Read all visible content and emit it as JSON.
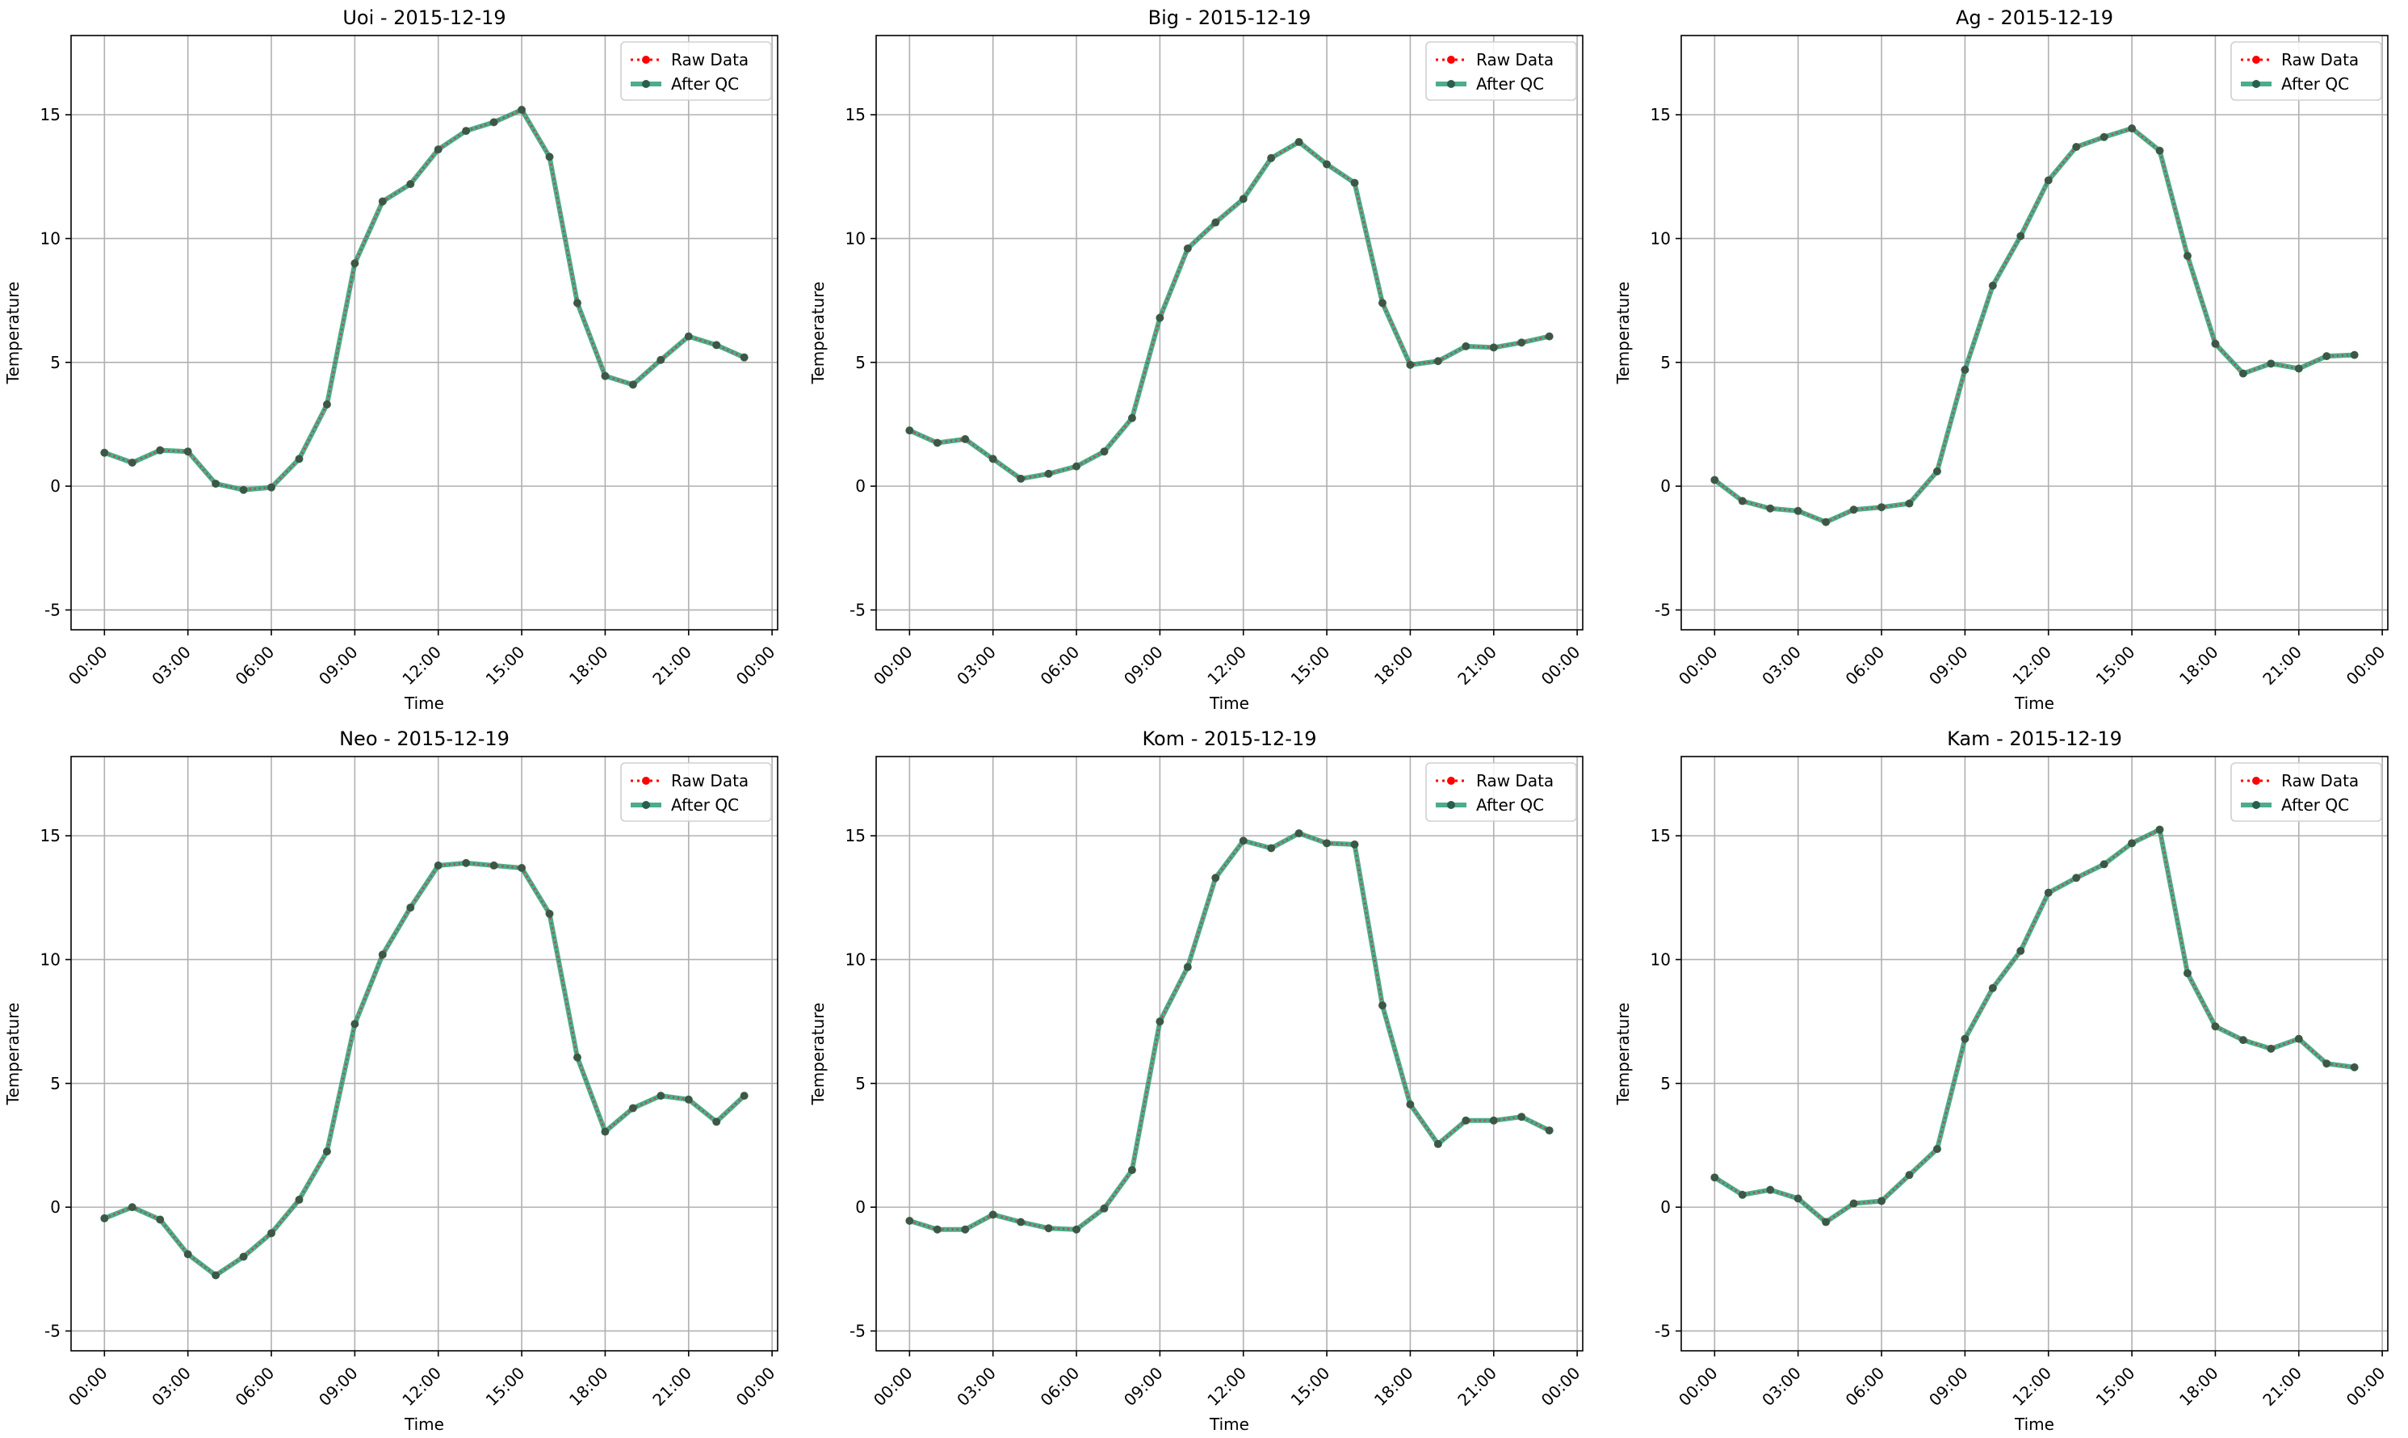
{
  "figure": {
    "xlabel": "Time",
    "ylabel": "Temperature",
    "legend": {
      "position": "top-right",
      "raw_label": "Raw Data",
      "qc_label": "After QC"
    },
    "colors": {
      "raw": "#ff0000",
      "qc": "#2e9e78",
      "grid": "#b0b0b0",
      "marker_dark": "#2a5f4d"
    }
  },
  "chart_data": [
    {
      "type": "line",
      "title": "Uoi - 2015-12-19",
      "xlabel": "Time",
      "ylabel": "Temperature",
      "x": [
        "00:00",
        "01:00",
        "02:00",
        "03:00",
        "04:00",
        "05:00",
        "06:00",
        "07:00",
        "08:00",
        "09:00",
        "10:00",
        "11:00",
        "12:00",
        "13:00",
        "14:00",
        "15:00",
        "16:00",
        "17:00",
        "18:00",
        "19:00",
        "20:00",
        "21:00",
        "22:00",
        "23:00"
      ],
      "xticks": [
        "00:00",
        "03:00",
        "06:00",
        "09:00",
        "12:00",
        "15:00",
        "18:00",
        "21:00",
        "00:00"
      ],
      "yticks": [
        -5,
        0,
        5,
        10,
        15
      ],
      "ylim": [
        -5.8,
        18.2
      ],
      "grid": true,
      "series": [
        {
          "name": "Raw Data",
          "values": [
            1.35,
            0.95,
            1.45,
            1.4,
            0.1,
            -0.15,
            -0.05,
            1.1,
            3.3,
            9.0,
            11.5,
            12.2,
            13.6,
            14.35,
            14.7,
            15.2,
            13.3,
            7.4,
            4.45,
            4.1,
            5.1,
            6.05,
            5.7,
            5.2
          ]
        },
        {
          "name": "After QC",
          "values": [
            1.35,
            0.95,
            1.45,
            1.4,
            0.1,
            -0.15,
            -0.05,
            1.1,
            3.3,
            9.0,
            11.5,
            12.2,
            13.6,
            14.35,
            14.7,
            15.2,
            13.3,
            7.4,
            4.45,
            4.1,
            5.1,
            6.05,
            5.7,
            5.2
          ]
        }
      ]
    },
    {
      "type": "line",
      "title": "Big - 2015-12-19",
      "xlabel": "Time",
      "ylabel": "Temperature",
      "x": [
        "00:00",
        "01:00",
        "02:00",
        "03:00",
        "04:00",
        "05:00",
        "06:00",
        "07:00",
        "08:00",
        "09:00",
        "10:00",
        "11:00",
        "12:00",
        "13:00",
        "14:00",
        "15:00",
        "16:00",
        "17:00",
        "18:00",
        "19:00",
        "20:00",
        "21:00",
        "22:00",
        "23:00"
      ],
      "xticks": [
        "00:00",
        "03:00",
        "06:00",
        "09:00",
        "12:00",
        "15:00",
        "18:00",
        "21:00",
        "00:00"
      ],
      "yticks": [
        -5,
        0,
        5,
        10,
        15
      ],
      "ylim": [
        -5.8,
        18.2
      ],
      "grid": true,
      "series": [
        {
          "name": "Raw Data",
          "values": [
            2.25,
            1.75,
            1.9,
            1.1,
            0.3,
            0.5,
            0.8,
            1.4,
            2.75,
            6.8,
            9.6,
            10.65,
            11.6,
            13.25,
            13.9,
            13.0,
            12.25,
            7.4,
            4.9,
            5.05,
            5.65,
            5.6,
            5.8,
            6.05
          ]
        },
        {
          "name": "After QC",
          "values": [
            2.25,
            1.75,
            1.9,
            1.1,
            0.3,
            0.5,
            0.8,
            1.4,
            2.75,
            6.8,
            9.6,
            10.65,
            11.6,
            13.25,
            13.9,
            13.0,
            12.25,
            7.4,
            4.9,
            5.05,
            5.65,
            5.6,
            5.8,
            6.05
          ]
        }
      ]
    },
    {
      "type": "line",
      "title": "Ag - 2015-12-19",
      "xlabel": "Time",
      "ylabel": "Temperature",
      "x": [
        "00:00",
        "01:00",
        "02:00",
        "03:00",
        "04:00",
        "05:00",
        "06:00",
        "07:00",
        "08:00",
        "09:00",
        "10:00",
        "11:00",
        "12:00",
        "13:00",
        "14:00",
        "15:00",
        "16:00",
        "17:00",
        "18:00",
        "19:00",
        "20:00",
        "21:00",
        "22:00",
        "23:00"
      ],
      "xticks": [
        "00:00",
        "03:00",
        "06:00",
        "09:00",
        "12:00",
        "15:00",
        "18:00",
        "21:00",
        "00:00"
      ],
      "yticks": [
        -5,
        0,
        5,
        10,
        15
      ],
      "ylim": [
        -5.8,
        18.2
      ],
      "grid": true,
      "series": [
        {
          "name": "Raw Data",
          "values": [
            0.25,
            -0.6,
            -0.9,
            -1.0,
            -1.45,
            -0.95,
            -0.85,
            -0.7,
            0.6,
            4.7,
            8.1,
            10.1,
            12.35,
            13.7,
            14.1,
            14.45,
            13.55,
            9.3,
            5.75,
            4.55,
            4.95,
            4.75,
            5.25,
            5.3
          ]
        },
        {
          "name": "After QC",
          "values": [
            0.25,
            -0.6,
            -0.9,
            -1.0,
            -1.45,
            -0.95,
            -0.85,
            -0.7,
            0.6,
            4.7,
            8.1,
            10.1,
            12.35,
            13.7,
            14.1,
            14.45,
            13.55,
            9.3,
            5.75,
            4.55,
            4.95,
            4.75,
            5.25,
            5.3
          ]
        }
      ]
    },
    {
      "type": "line",
      "title": "Neo - 2015-12-19",
      "xlabel": "Time",
      "ylabel": "Temperature",
      "x": [
        "00:00",
        "01:00",
        "02:00",
        "03:00",
        "04:00",
        "05:00",
        "06:00",
        "07:00",
        "08:00",
        "09:00",
        "10:00",
        "11:00",
        "12:00",
        "13:00",
        "14:00",
        "15:00",
        "16:00",
        "17:00",
        "18:00",
        "19:00",
        "20:00",
        "21:00",
        "22:00",
        "23:00"
      ],
      "xticks": [
        "00:00",
        "03:00",
        "06:00",
        "09:00",
        "12:00",
        "15:00",
        "18:00",
        "21:00",
        "00:00"
      ],
      "yticks": [
        -5,
        0,
        5,
        10,
        15
      ],
      "ylim": [
        -5.8,
        18.2
      ],
      "grid": true,
      "series": [
        {
          "name": "Raw Data",
          "values": [
            -0.45,
            0.0,
            -0.5,
            -1.9,
            -2.75,
            -2.0,
            -1.05,
            0.3,
            2.25,
            7.4,
            10.2,
            12.1,
            13.8,
            13.9,
            13.8,
            13.7,
            11.85,
            6.05,
            3.05,
            4.0,
            4.5,
            4.35,
            3.45,
            4.5
          ]
        },
        {
          "name": "After QC",
          "values": [
            -0.45,
            0.0,
            -0.5,
            -1.9,
            -2.75,
            -2.0,
            -1.05,
            0.3,
            2.25,
            7.4,
            10.2,
            12.1,
            13.8,
            13.9,
            13.8,
            13.7,
            11.85,
            6.05,
            3.05,
            4.0,
            4.5,
            4.35,
            3.45,
            4.5
          ]
        }
      ]
    },
    {
      "type": "line",
      "title": "Kom - 2015-12-19",
      "xlabel": "Time",
      "ylabel": "Temperature",
      "x": [
        "00:00",
        "01:00",
        "02:00",
        "03:00",
        "04:00",
        "05:00",
        "06:00",
        "07:00",
        "08:00",
        "09:00",
        "10:00",
        "11:00",
        "12:00",
        "13:00",
        "14:00",
        "15:00",
        "16:00",
        "17:00",
        "18:00",
        "19:00",
        "20:00",
        "21:00",
        "22:00",
        "23:00"
      ],
      "xticks": [
        "00:00",
        "03:00",
        "06:00",
        "09:00",
        "12:00",
        "15:00",
        "18:00",
        "21:00",
        "00:00"
      ],
      "yticks": [
        -5,
        0,
        5,
        10,
        15
      ],
      "ylim": [
        -5.8,
        18.2
      ],
      "grid": true,
      "series": [
        {
          "name": "Raw Data",
          "values": [
            -0.55,
            -0.9,
            -0.9,
            -0.3,
            -0.6,
            -0.85,
            -0.9,
            -0.05,
            1.5,
            7.5,
            9.7,
            13.3,
            14.8,
            14.5,
            15.1,
            14.7,
            14.65,
            8.15,
            4.15,
            2.55,
            3.5,
            3.5,
            3.65,
            3.1
          ]
        },
        {
          "name": "After QC",
          "values": [
            -0.55,
            -0.9,
            -0.9,
            -0.3,
            -0.6,
            -0.85,
            -0.9,
            -0.05,
            1.5,
            7.5,
            9.7,
            13.3,
            14.8,
            14.5,
            15.1,
            14.7,
            14.65,
            8.15,
            4.15,
            2.55,
            3.5,
            3.5,
            3.65,
            3.1
          ]
        }
      ]
    },
    {
      "type": "line",
      "title": "Kam - 2015-12-19",
      "xlabel": "Time",
      "ylabel": "Temperature",
      "x": [
        "00:00",
        "01:00",
        "02:00",
        "03:00",
        "04:00",
        "05:00",
        "06:00",
        "07:00",
        "08:00",
        "09:00",
        "10:00",
        "11:00",
        "12:00",
        "13:00",
        "14:00",
        "15:00",
        "16:00",
        "17:00",
        "18:00",
        "19:00",
        "20:00",
        "21:00",
        "22:00",
        "23:00"
      ],
      "xticks": [
        "00:00",
        "03:00",
        "06:00",
        "09:00",
        "12:00",
        "15:00",
        "18:00",
        "21:00",
        "00:00"
      ],
      "yticks": [
        -5,
        0,
        5,
        10,
        15
      ],
      "ylim": [
        -5.8,
        18.2
      ],
      "grid": true,
      "series": [
        {
          "name": "Raw Data",
          "values": [
            1.2,
            0.5,
            0.7,
            0.35,
            -0.6,
            0.15,
            0.25,
            1.3,
            2.35,
            6.8,
            8.85,
            10.35,
            12.7,
            13.3,
            13.85,
            14.7,
            15.25,
            9.45,
            7.3,
            6.75,
            6.4,
            6.8,
            5.8,
            5.65
          ]
        },
        {
          "name": "After QC",
          "values": [
            1.2,
            0.5,
            0.7,
            0.35,
            -0.6,
            0.15,
            0.25,
            1.3,
            2.35,
            6.8,
            8.85,
            10.35,
            12.7,
            13.3,
            13.85,
            14.7,
            15.25,
            9.45,
            7.3,
            6.75,
            6.4,
            6.8,
            5.8,
            5.65
          ]
        }
      ]
    }
  ]
}
